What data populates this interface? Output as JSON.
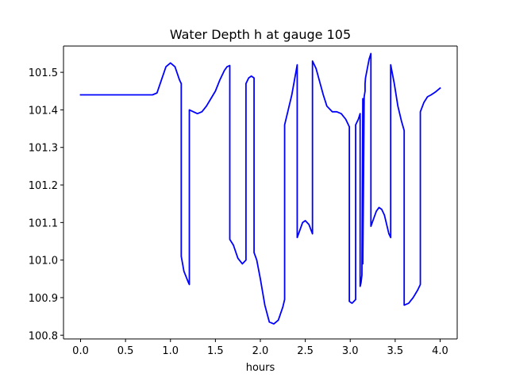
{
  "chart_data": {
    "type": "line",
    "title": "Water Depth h at gauge 105",
    "xlabel": "hours",
    "ylabel": "",
    "xlim": [
      -0.19,
      4.19
    ],
    "ylim": [
      100.79,
      101.57
    ],
    "x_ticks": [
      0.0,
      0.5,
      1.0,
      1.5,
      2.0,
      2.5,
      3.0,
      3.5,
      4.0
    ],
    "x_tick_labels": [
      "0.0",
      "0.5",
      "1.0",
      "1.5",
      "2.0",
      "2.5",
      "3.0",
      "3.5",
      "4.0"
    ],
    "y_ticks": [
      100.8,
      100.9,
      101.0,
      101.1,
      101.2,
      101.3,
      101.4,
      101.5
    ],
    "y_tick_labels": [
      "100.8",
      "100.9",
      "101.0",
      "101.1",
      "101.2",
      "101.3",
      "101.4",
      "101.5"
    ],
    "grid": false,
    "colors": {
      "line": "#0000ff",
      "axes": "#000000",
      "background": "#ffffff"
    },
    "series": [
      {
        "name": "",
        "x": [
          0.0,
          0.4,
          0.8,
          0.85,
          0.9,
          0.95,
          1.0,
          1.05,
          1.1,
          1.12,
          1.12,
          1.15,
          1.2,
          1.21,
          1.21,
          1.3,
          1.35,
          1.4,
          1.45,
          1.5,
          1.55,
          1.6,
          1.63,
          1.66,
          1.66,
          1.7,
          1.75,
          1.8,
          1.84,
          1.84,
          1.87,
          1.9,
          1.93,
          1.93,
          1.96,
          2.0,
          2.05,
          2.1,
          2.15,
          2.2,
          2.25,
          2.27,
          2.27,
          2.31,
          2.35,
          2.38,
          2.41,
          2.41,
          2.44,
          2.47,
          2.5,
          2.54,
          2.58,
          2.58,
          2.62,
          2.66,
          2.7,
          2.74,
          2.8,
          2.85,
          2.9,
          2.95,
          2.99,
          2.99,
          3.02,
          3.06,
          3.06,
          3.09,
          3.11,
          3.11,
          3.12,
          3.13,
          3.14,
          3.14,
          3.155,
          3.165,
          3.165,
          3.17,
          3.19,
          3.21,
          3.23,
          3.23,
          3.26,
          3.29,
          3.32,
          3.35,
          3.38,
          3.41,
          3.43,
          3.45,
          3.45,
          3.49,
          3.53,
          3.57,
          3.6,
          3.6,
          3.65,
          3.7,
          3.75,
          3.78,
          3.78,
          3.82,
          3.86,
          3.9,
          3.95,
          4.0
        ],
        "y": [
          101.44,
          101.44,
          101.44,
          101.445,
          101.48,
          101.515,
          101.525,
          101.515,
          101.48,
          101.47,
          101.01,
          100.97,
          100.94,
          100.935,
          101.4,
          101.39,
          101.395,
          101.41,
          101.43,
          101.45,
          101.48,
          101.505,
          101.515,
          101.518,
          101.055,
          101.04,
          101.005,
          100.99,
          101.0,
          101.47,
          101.485,
          101.49,
          101.485,
          101.02,
          101.0,
          100.95,
          100.88,
          100.835,
          100.83,
          100.84,
          100.875,
          100.895,
          101.36,
          101.4,
          101.44,
          101.48,
          101.52,
          101.06,
          101.08,
          101.1,
          101.105,
          101.095,
          101.07,
          101.53,
          101.51,
          101.475,
          101.44,
          101.41,
          101.395,
          101.395,
          101.39,
          101.375,
          101.355,
          100.89,
          100.885,
          100.895,
          101.36,
          101.375,
          101.39,
          100.93,
          100.94,
          100.96,
          101.43,
          100.99,
          101.435,
          101.45,
          101.47,
          101.485,
          101.51,
          101.535,
          101.55,
          101.09,
          101.11,
          101.13,
          101.14,
          101.135,
          101.12,
          101.09,
          101.07,
          101.06,
          101.52,
          101.47,
          101.41,
          101.37,
          101.345,
          100.88,
          100.885,
          100.9,
          100.92,
          100.935,
          101.395,
          101.42,
          101.435,
          101.44,
          101.448,
          101.458
        ]
      }
    ]
  }
}
